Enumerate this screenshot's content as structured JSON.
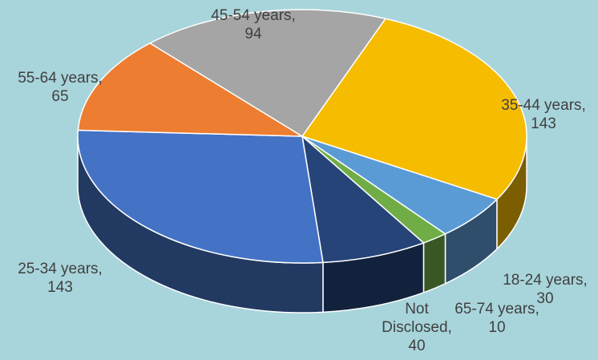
{
  "chart_data": {
    "type": "pie",
    "title": "",
    "style": "3d-pie",
    "slices": [
      {
        "label": "35-44 years",
        "value": 143,
        "color": "#f5bc00"
      },
      {
        "label": "18-24 years",
        "value": 30,
        "color": "#5b9bd5"
      },
      {
        "label": "65-74 years",
        "value": 10,
        "color": "#70ad47"
      },
      {
        "label": "Not Disclosed",
        "value": 40,
        "color": "#264478"
      },
      {
        "label": "25-34 years",
        "value": 143,
        "color": "#4472c4"
      },
      {
        "label": "55-64 years",
        "value": 65,
        "color": "#ed7d31"
      },
      {
        "label": "45-54 years",
        "value": 94,
        "color": "#a5a5a5"
      }
    ],
    "data_labels": [
      {
        "line1": "45-54 years,",
        "line2": "94"
      },
      {
        "line1": "55-64 years,",
        "line2": "65"
      },
      {
        "line1": "35-44 years,",
        "line2": "143"
      },
      {
        "line1": "25-34 years,",
        "line2": "143"
      },
      {
        "line1": "18-24 years,",
        "line2": "30"
      },
      {
        "line1": "65-74 years,",
        "line2": "10"
      },
      {
        "line1": "Not",
        "line2": "Disclosed,",
        "line3": "40"
      }
    ],
    "legend": "none",
    "background_color": "#a8d5db"
  }
}
